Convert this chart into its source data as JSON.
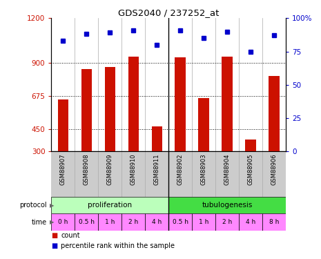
{
  "title": "GDS2040 / 237252_at",
  "samples": [
    "GSM88907",
    "GSM88908",
    "GSM88909",
    "GSM88910",
    "GSM88911",
    "GSM88902",
    "GSM88903",
    "GSM88904",
    "GSM88905",
    "GSM88906"
  ],
  "counts": [
    650,
    855,
    870,
    940,
    470,
    935,
    660,
    940,
    380,
    810
  ],
  "percentiles": [
    83,
    88,
    89,
    91,
    80,
    91,
    85,
    90,
    75,
    87
  ],
  "ylim_left": [
    300,
    1200
  ],
  "ylim_right": [
    0,
    100
  ],
  "yticks_left": [
    300,
    450,
    675,
    900,
    1200
  ],
  "yticks_right": [
    0,
    25,
    50,
    75,
    100
  ],
  "ytick_labels_left": [
    "300",
    "450",
    "675",
    "900",
    "1200"
  ],
  "ytick_labels_right": [
    "0",
    "25",
    "50",
    "75",
    "100%"
  ],
  "hlines": [
    450,
    675,
    900
  ],
  "protocol_labels": [
    "proliferation",
    "tubulogenesis"
  ],
  "protocol_colors": [
    "#bbffbb",
    "#44dd44"
  ],
  "time_labels": [
    "0 h",
    "0.5 h",
    "1 h",
    "2 h",
    "4 h",
    "0.5 h",
    "1 h",
    "2 h",
    "4 h",
    "8 h"
  ],
  "time_color": "#ff88ff",
  "bar_color": "#cc1100",
  "dot_color": "#0000cc",
  "sample_bg": "#cccccc",
  "left_tick_color": "#cc1100",
  "right_tick_color": "#0000cc",
  "legend_count_label": "count",
  "legend_pct_label": "percentile rank within the sample"
}
